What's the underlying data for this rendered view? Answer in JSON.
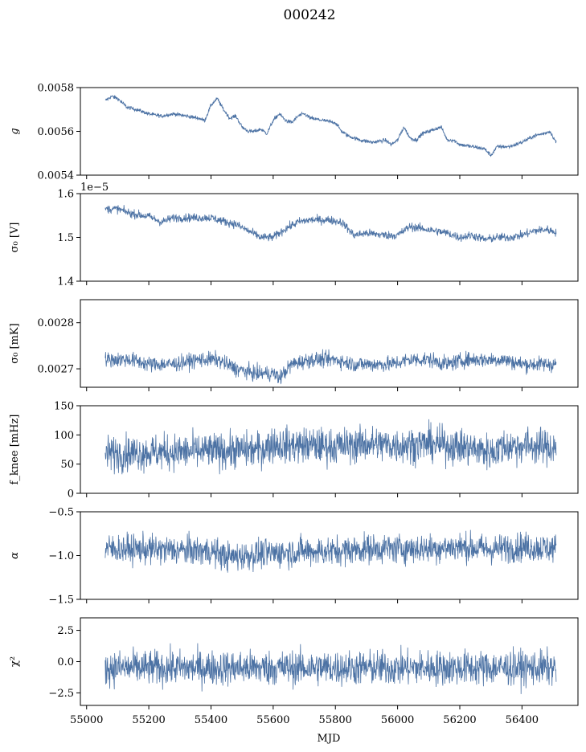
{
  "figure": {
    "title": "000242",
    "xlabel": "MJD"
  },
  "chart_data": {
    "type": "line",
    "x_range": [
      54980,
      56580
    ],
    "x_ticks": [
      55000,
      55200,
      55400,
      55600,
      55800,
      56000,
      56200,
      56400
    ],
    "x_tick_labels": [
      "55000",
      "55200",
      "55400",
      "55600",
      "55800",
      "56000",
      "56200",
      "56400"
    ],
    "line_color": "#4c72a4",
    "grid": false,
    "panels": [
      {
        "id": "g",
        "ylabel": "g",
        "ylim": [
          0.0054,
          0.0058
        ],
        "yticks": [
          0.0054,
          0.0056,
          0.0058
        ],
        "ytick_labels": [
          "0.0054",
          "0.0056",
          "0.0058"
        ],
        "offset_text": "",
        "noise": 6e-06,
        "envelope": [
          [
            55060,
            0.00574
          ],
          [
            55080,
            0.00576
          ],
          [
            55100,
            0.00575
          ],
          [
            55130,
            0.00571
          ],
          [
            55160,
            0.0057
          ],
          [
            55200,
            0.00568
          ],
          [
            55240,
            0.00567
          ],
          [
            55280,
            0.00568
          ],
          [
            55320,
            0.00567
          ],
          [
            55360,
            0.00566
          ],
          [
            55380,
            0.00565
          ],
          [
            55400,
            0.00572
          ],
          [
            55420,
            0.00575
          ],
          [
            55440,
            0.0057
          ],
          [
            55460,
            0.00566
          ],
          [
            55480,
            0.00567
          ],
          [
            55500,
            0.00562
          ],
          [
            55520,
            0.0056
          ],
          [
            55540,
            0.0056
          ],
          [
            55560,
            0.00561
          ],
          [
            55580,
            0.00559
          ],
          [
            55600,
            0.00565
          ],
          [
            55620,
            0.00568
          ],
          [
            55640,
            0.00565
          ],
          [
            55660,
            0.00564
          ],
          [
            55680,
            0.00567
          ],
          [
            55700,
            0.00568
          ],
          [
            55720,
            0.00566
          ],
          [
            55760,
            0.00565
          ],
          [
            55800,
            0.00564
          ],
          [
            55820,
            0.0056
          ],
          [
            55840,
            0.00558
          ],
          [
            55880,
            0.00556
          ],
          [
            55920,
            0.00555
          ],
          [
            55960,
            0.00556
          ],
          [
            55980,
            0.00554
          ],
          [
            56000,
            0.00556
          ],
          [
            56020,
            0.00562
          ],
          [
            56040,
            0.00557
          ],
          [
            56060,
            0.00556
          ],
          [
            56080,
            0.00559
          ],
          [
            56100,
            0.0056
          ],
          [
            56140,
            0.00562
          ],
          [
            56160,
            0.00556
          ],
          [
            56180,
            0.00556
          ],
          [
            56200,
            0.00554
          ],
          [
            56240,
            0.00553
          ],
          [
            56280,
            0.00552
          ],
          [
            56300,
            0.00549
          ],
          [
            56320,
            0.00553
          ],
          [
            56360,
            0.00553
          ],
          [
            56400,
            0.00555
          ],
          [
            56440,
            0.00558
          ],
          [
            56470,
            0.00559
          ],
          [
            56490,
            0.0056
          ],
          [
            56510,
            0.00555
          ]
        ]
      },
      {
        "id": "sigma0_V",
        "ylabel": "σ₀ [V]",
        "ylim": [
          1.4e-05,
          1.6e-05
        ],
        "yticks": [
          1.4e-05,
          1.5e-05,
          1.6e-05
        ],
        "ytick_labels": [
          "1.4",
          "1.5",
          "1.6"
        ],
        "offset_text": "1e−5",
        "noise": 7e-08,
        "envelope": [
          [
            55060,
            1.565e-05
          ],
          [
            55100,
            1.565e-05
          ],
          [
            55140,
            1.555e-05
          ],
          [
            55200,
            1.548e-05
          ],
          [
            55240,
            1.535e-05
          ],
          [
            55280,
            1.545e-05
          ],
          [
            55340,
            1.545e-05
          ],
          [
            55400,
            1.545e-05
          ],
          [
            55440,
            1.537e-05
          ],
          [
            55480,
            1.53e-05
          ],
          [
            55520,
            1.515e-05
          ],
          [
            55560,
            1.5e-05
          ],
          [
            55600,
            1.5e-05
          ],
          [
            55640,
            1.52e-05
          ],
          [
            55680,
            1.535e-05
          ],
          [
            55720,
            1.54e-05
          ],
          [
            55780,
            1.54e-05
          ],
          [
            55820,
            1.535e-05
          ],
          [
            55860,
            1.505e-05
          ],
          [
            55900,
            1.51e-05
          ],
          [
            55960,
            1.505e-05
          ],
          [
            56000,
            1.505e-05
          ],
          [
            56040,
            1.525e-05
          ],
          [
            56080,
            1.52e-05
          ],
          [
            56120,
            1.515e-05
          ],
          [
            56160,
            1.51e-05
          ],
          [
            56200,
            1.5e-05
          ],
          [
            56240,
            1.505e-05
          ],
          [
            56280,
            1.495e-05
          ],
          [
            56320,
            1.5e-05
          ],
          [
            56360,
            1.5e-05
          ],
          [
            56400,
            1.505e-05
          ],
          [
            56440,
            1.515e-05
          ],
          [
            56480,
            1.518e-05
          ],
          [
            56510,
            1.512e-05
          ]
        ]
      },
      {
        "id": "sigma0_mK",
        "ylabel": "σ₀ [mK]",
        "ylim": [
          0.00266,
          0.00285
        ],
        "yticks": [
          0.0027,
          0.0028
        ],
        "ytick_labels": [
          "0.0027",
          "0.0028"
        ],
        "offset_text": "",
        "noise": 1.2e-05,
        "envelope": [
          [
            55060,
            0.00272
          ],
          [
            55140,
            0.00272
          ],
          [
            55200,
            0.00271
          ],
          [
            55280,
            0.00271
          ],
          [
            55360,
            0.00272
          ],
          [
            55420,
            0.00272
          ],
          [
            55480,
            0.0027
          ],
          [
            55540,
            0.00269
          ],
          [
            55600,
            0.00269
          ],
          [
            55620,
            0.00268
          ],
          [
            55660,
            0.00271
          ],
          [
            55720,
            0.00272
          ],
          [
            55800,
            0.00272
          ],
          [
            55860,
            0.00271
          ],
          [
            55920,
            0.00271
          ],
          [
            55980,
            0.00271
          ],
          [
            56040,
            0.00272
          ],
          [
            56100,
            0.00272
          ],
          [
            56160,
            0.00271
          ],
          [
            56220,
            0.00272
          ],
          [
            56280,
            0.00272
          ],
          [
            56340,
            0.00272
          ],
          [
            56400,
            0.00271
          ],
          [
            56460,
            0.00271
          ],
          [
            56510,
            0.00271
          ]
        ]
      },
      {
        "id": "fknee",
        "ylabel": "f_knee [mHz]",
        "ylim": [
          0,
          150
        ],
        "yticks": [
          0,
          50,
          100,
          150
        ],
        "ytick_labels": [
          "0",
          "50",
          "100",
          "150"
        ],
        "offset_text": "",
        "noise": 22,
        "envelope": [
          [
            55060,
            68
          ],
          [
            55200,
            70
          ],
          [
            55400,
            72
          ],
          [
            55560,
            75
          ],
          [
            55600,
            85
          ],
          [
            55640,
            82
          ],
          [
            55720,
            82
          ],
          [
            55800,
            80
          ],
          [
            55900,
            85
          ],
          [
            56000,
            82
          ],
          [
            56100,
            85
          ],
          [
            56200,
            80
          ],
          [
            56260,
            75
          ],
          [
            56300,
            70
          ],
          [
            56340,
            80
          ],
          [
            56420,
            82
          ],
          [
            56510,
            78
          ]
        ]
      },
      {
        "id": "alpha",
        "ylabel": "α",
        "ylim": [
          -1.5,
          -0.5
        ],
        "yticks": [
          -1.5,
          -1.0,
          -0.5
        ],
        "ytick_labels": [
          "−1.5",
          "−1.0",
          "−0.5"
        ],
        "offset_text": "",
        "noise": 0.12,
        "envelope": [
          [
            55060,
            -0.92
          ],
          [
            55200,
            -0.93
          ],
          [
            55400,
            -0.95
          ],
          [
            55460,
            -1.02
          ],
          [
            55560,
            -0.98
          ],
          [
            55700,
            -0.95
          ],
          [
            55800,
            -0.95
          ],
          [
            55900,
            -0.92
          ],
          [
            56000,
            -0.92
          ],
          [
            56100,
            -0.92
          ],
          [
            56200,
            -0.9
          ],
          [
            56300,
            -0.93
          ],
          [
            56400,
            -0.9
          ],
          [
            56510,
            -0.92
          ]
        ]
      },
      {
        "id": "chi2",
        "ylabel": "χ²",
        "ylim": [
          -3.5,
          3.5
        ],
        "yticks": [
          -2.5,
          0.0,
          2.5
        ],
        "ytick_labels": [
          "−2.5",
          "0.0",
          "2.5"
        ],
        "offset_text": "",
        "noise": 1.0,
        "envelope": [
          [
            55060,
            -0.5
          ],
          [
            55300,
            -0.5
          ],
          [
            55600,
            -0.5
          ],
          [
            55900,
            -0.5
          ],
          [
            56200,
            -0.5
          ],
          [
            56510,
            -0.5
          ]
        ]
      }
    ]
  }
}
